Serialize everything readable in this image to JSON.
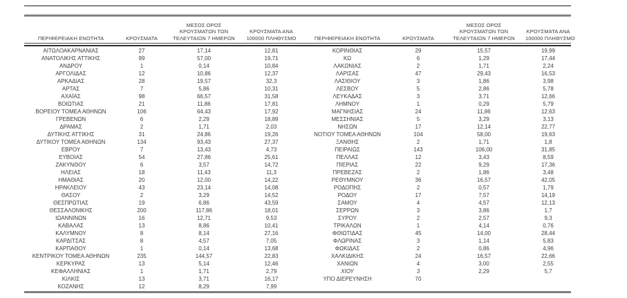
{
  "table": {
    "title_semantic": "regional-covid-cases-table",
    "colors": {
      "text": "#3d3d3d",
      "rule_dark": "#1c1c1c",
      "rule_gray": "#828282",
      "header_sep": "#2e2e2e"
    },
    "headers": [
      {
        "lines": [
          "ΠΕΡΙΦΕΡΕΙΑΚΗ ΕΝΟΤΗΤΑ"
        ]
      },
      {
        "lines": [
          "ΚΡΟΥΣΜΑΤΑ"
        ]
      },
      {
        "lines": [
          "ΜΕΣΟΣ ΟΡΟΣ",
          "ΚΡΟΥΣΜΑΤΩΝ ΤΩΝ",
          "ΤΕΛΕΥΤΑΙΩΝ 7 ΗΜΕΡΩΝ"
        ]
      },
      {
        "lines": [
          "ΚΡΟΥΣΜΑΤΑ ΑΝΑ",
          "100000 ΠΛΗΘΥΣΜΟ"
        ]
      }
    ],
    "italic_names": [
      "ΧΙΟΥ"
    ],
    "left_rows": [
      [
        "ΑΙΤΩΛΟΑΚΑΡΝΑΝΙΑΣ",
        "27",
        "17,14",
        "12,81"
      ],
      [
        "ΑΝΑΤΟΛΙΚΗΣ ΑΤΤΙΚΗΣ",
        "99",
        "57,00",
        "19,71"
      ],
      [
        "ΑΝΔΡΟΥ",
        "1",
        "0,14",
        "10,84"
      ],
      [
        "ΑΡΓΟΛΙΔΑΣ",
        "12",
        "10,86",
        "12,37"
      ],
      [
        "ΑΡΚΑΔΙΑΣ",
        "28",
        "19,57",
        "32,3"
      ],
      [
        "ΑΡΤΑΣ",
        "7",
        "5,86",
        "10,31"
      ],
      [
        "ΑΧΑΪΑΣ",
        "98",
        "66,57",
        "31,58"
      ],
      [
        "ΒΟΙΩΤΙΑΣ",
        "21",
        "11,86",
        "17,81"
      ],
      [
        "ΒΟΡΕΙΟΥ ΤΟΜΕΑ ΑΘΗΝΩΝ",
        "106",
        "64,43",
        "17,92"
      ],
      [
        "ΓΡΕΒΕΝΩΝ",
        "6",
        "2,29",
        "18,89"
      ],
      [
        "ΔΡΑΜΑΣ",
        "2",
        "1,71",
        "2,03"
      ],
      [
        "ΔΥΤΙΚΗΣ ΑΤΤΙΚΗΣ",
        "31",
        "24,86",
        "19,26"
      ],
      [
        "ΔΥΤΙΚΟΥ ΤΟΜΕΑ ΑΘΗΝΩΝ",
        "134",
        "93,43",
        "27,37"
      ],
      [
        "ΕΒΡΟΥ",
        "7",
        "13,43",
        "4,73"
      ],
      [
        "ΕΥΒΟΙΑΣ",
        "54",
        "27,86",
        "25,61"
      ],
      [
        "ΖΑΚΥΝΘΟΥ",
        "6",
        "3,57",
        "14,72"
      ],
      [
        "ΗΛΕΙΑΣ",
        "18",
        "11,43",
        "11,3"
      ],
      [
        "ΗΜΑΘΙΑΣ",
        "20",
        "12,00",
        "14,22"
      ],
      [
        "ΗΡΑΚΛΕΙΟΥ",
        "43",
        "23,14",
        "14,08"
      ],
      [
        "ΘΑΣΟΥ",
        "2",
        "3,29",
        "14,52"
      ],
      [
        "ΘΕΣΠΡΩΤΙΑΣ",
        "19",
        "6,86",
        "43,59"
      ],
      [
        "ΘΕΣΣΑΛΟΝΙΚΗΣ",
        "200",
        "117,86",
        "18,01"
      ],
      [
        "ΙΩΑΝΝΙΝΩΝ",
        "16",
        "12,71",
        "9,53"
      ],
      [
        "ΚΑΒΑΛΑΣ",
        "13",
        "8,86",
        "10,41"
      ],
      [
        "ΚΑΛΥΜΝΟΥ",
        "8",
        "8,14",
        "27,16"
      ],
      [
        "ΚΑΡΔΙΤΣΑΣ",
        "8",
        "4,57",
        "7,05"
      ],
      [
        "ΚΑΡΠΑΘΟΥ",
        "1",
        "0,14",
        "13,68"
      ],
      [
        "ΚΕΝΤΡΙΚΟΥ ΤΟΜΕΑ ΑΘΗΝΩΝ",
        "235",
        "144,57",
        "22,83"
      ],
      [
        "ΚΕΡΚΥΡΑΣ",
        "13",
        "5,14",
        "12,46"
      ],
      [
        "ΚΕΦΑΛΛΗΝΙΑΣ",
        "1",
        "1,71",
        "2,79"
      ],
      [
        "ΚΙΛΚΙΣ",
        "13",
        "3,71",
        "16,17"
      ],
      [
        "ΚΟΖΑΝΗΣ",
        "12",
        "8,29",
        "7,99"
      ]
    ],
    "right_rows": [
      [
        "ΚΟΡΙΝΘΙΑΣ",
        "29",
        "15,57",
        "19,99"
      ],
      [
        "ΚΩ",
        "6",
        "1,29",
        "17,44"
      ],
      [
        "ΛΑΚΩΝΙΑΣ",
        "2",
        "1,71",
        "2,24"
      ],
      [
        "ΛΑΡΙΣΑΣ",
        "47",
        "29,43",
        "16,53"
      ],
      [
        "ΛΑΣΙΘΙΟΥ",
        "3",
        "1,86",
        "3,98"
      ],
      [
        "ΛΕΣΒΟΥ",
        "5",
        "2,86",
        "5,78"
      ],
      [
        "ΛΕΥΚΑΔΑΣ",
        "3",
        "3,71",
        "12,66"
      ],
      [
        "ΛΗΜΝΟΥ",
        "1",
        "0,29",
        "5,79"
      ],
      [
        "ΜΑΓΝΗΣΙΑΣ",
        "24",
        "11,86",
        "12,63"
      ],
      [
        "ΜΕΣΣΗΝΙΑΣ",
        "5",
        "3,29",
        "3,13"
      ],
      [
        "ΝΗΣΩΝ",
        "17",
        "12,14",
        "22,77"
      ],
      [
        "ΝΟΤΙΟΥ ΤΟΜΕΑ ΑΘΗΝΩΝ",
        "104",
        "58,00",
        "19,63"
      ],
      [
        "ΞΑΝΘΗΣ",
        "2",
        "1,71",
        "1,8"
      ],
      [
        "ΠΕΙΡΑΙΩΣ",
        "143",
        "106,00",
        "31,85"
      ],
      [
        "ΠΕΛΛΑΣ",
        "12",
        "3,43",
        "8,59"
      ],
      [
        "ΠΙΕΡΙΑΣ",
        "22",
        "9,29",
        "17,36"
      ],
      [
        "ΠΡΕΒΕΖΑΣ",
        "2",
        "1,86",
        "3,48"
      ],
      [
        "ΡΕΘΥΜΝΟΥ",
        "36",
        "16,57",
        "42,05"
      ],
      [
        "ΡΟΔΟΠΗΣ",
        "2",
        "0,57",
        "1,79"
      ],
      [
        "ΡΟΔΟΥ",
        "17",
        "7,57",
        "14,19"
      ],
      [
        "ΣΑΜΟΥ",
        "4",
        "4,57",
        "12,13"
      ],
      [
        "ΣΕΡΡΩΝ",
        "3",
        "3,86",
        "1,7"
      ],
      [
        "ΣΥΡΟΥ",
        "2",
        "2,57",
        "9,3"
      ],
      [
        "ΤΡΙΚΑΛΩΝ",
        "1",
        "4,14",
        "0,76"
      ],
      [
        "ΦΘΙΩΤΙΔΑΣ",
        "45",
        "14,00",
        "28,44"
      ],
      [
        "ΦΛΩΡΙΝΑΣ",
        "3",
        "1,14",
        "5,83"
      ],
      [
        "ΦΩΚΙΔΑΣ",
        "2",
        "0,86",
        "4,96"
      ],
      [
        "ΧΑΛΚΙΔΙΚΗΣ",
        "24",
        "16,57",
        "22,66"
      ],
      [
        "ΧΑΝΙΩΝ",
        "4",
        "3,00",
        "2,55"
      ],
      [
        "ΧΙΟΥ",
        "3",
        "2,29",
        "5,7"
      ],
      [
        "ΥΠΟ ΔΙΕΡΕΥΝΗΣΗ",
        "70",
        "",
        ""
      ]
    ]
  }
}
